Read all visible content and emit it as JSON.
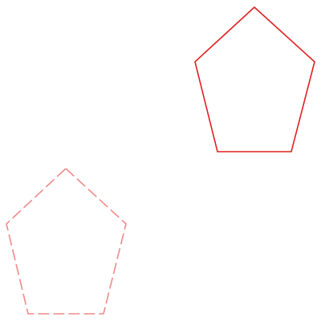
{
  "shapes": [
    {
      "kind": "pentagon",
      "style": "solid",
      "color": "#e02020",
      "opacity": 1.0
    },
    {
      "kind": "pentagon",
      "style": "dashed",
      "color": "#ee8a8a",
      "opacity": 1.0
    }
  ]
}
